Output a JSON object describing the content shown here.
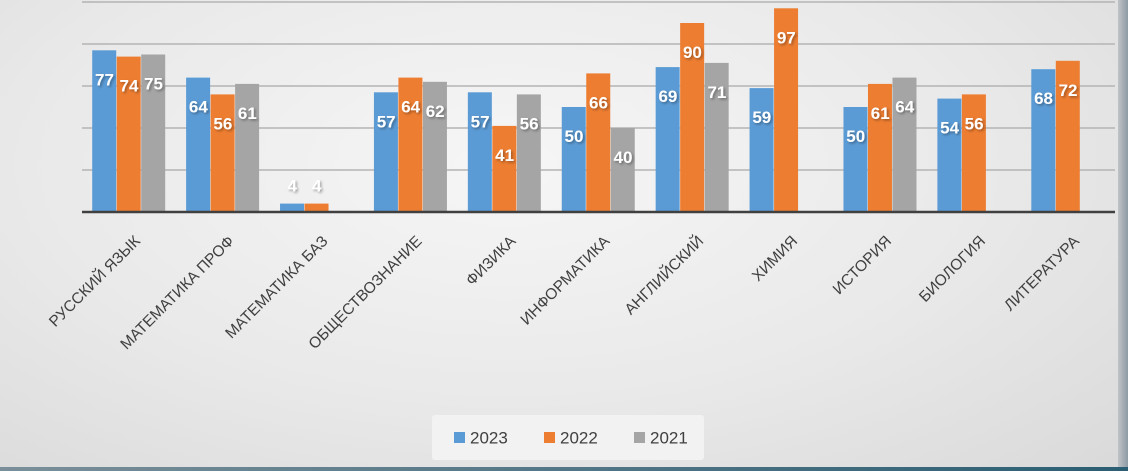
{
  "chart_data": {
    "type": "bar",
    "categories": [
      "РУССКИЙ ЯЗЫК",
      "МАТЕМАТИКА ПРОФ",
      "МАТЕМАТИКА БАЗ",
      "ОБЩЕСТВОЗНАНИЕ",
      "ФИЗИКА",
      "ИНФОРМАТИКА",
      "АНГЛИЙСКИЙ",
      "ХИМИЯ",
      "ИСТОРИЯ",
      "БИОЛОГИЯ",
      "ЛИТЕРАТУРА"
    ],
    "series": [
      {
        "name": "2023",
        "color": "#5b9bd5",
        "values": [
          77,
          64,
          4,
          57,
          57,
          50,
          69,
          59,
          50,
          54,
          68
        ]
      },
      {
        "name": "2022",
        "color": "#ed7d31",
        "values": [
          74,
          56,
          4,
          64,
          41,
          66,
          90,
          97,
          61,
          56,
          72
        ]
      },
      {
        "name": "2021",
        "color": "#a5a5a5",
        "values": [
          75,
          61,
          null,
          62,
          56,
          40,
          71,
          null,
          64,
          null,
          null
        ]
      }
    ],
    "data_labels": [
      [
        "77",
        "64",
        "4",
        "57",
        "57",
        "50",
        "69",
        "59",
        "50",
        "54",
        "68"
      ],
      [
        "74",
        "56",
        "4",
        "64",
        "41",
        "66",
        "90",
        "97",
        "61",
        "56",
        "72"
      ],
      [
        "75",
        "61",
        "",
        "62",
        "56",
        "40",
        "71",
        "",
        "64",
        "",
        ""
      ]
    ],
    "ylim": [
      0,
      100
    ],
    "grid": true,
    "legend_position": "bottom"
  }
}
